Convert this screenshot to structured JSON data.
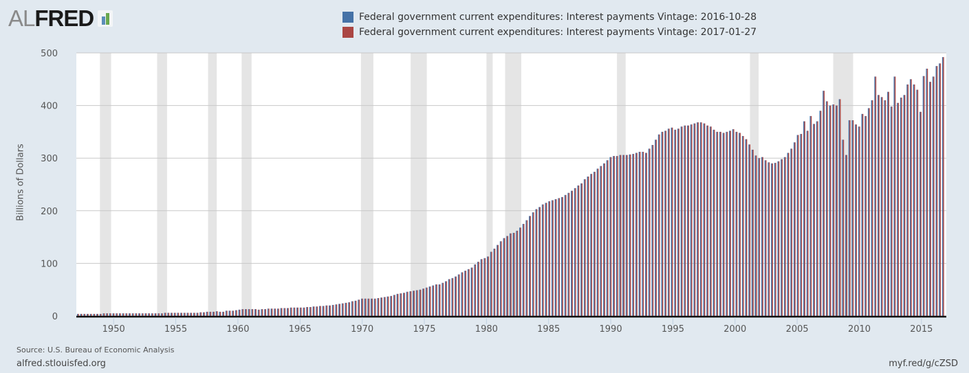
{
  "logo": {
    "prefix": "AL",
    "main": "FRED",
    "icon": "fred-bar-chart-icon"
  },
  "legend": [
    {
      "label": "Federal government current expenditures: Interest payments Vintage: 2016-10-28",
      "color": "#4572a7"
    },
    {
      "label": "Federal government current expenditures: Interest payments Vintage: 2017-01-27",
      "color": "#aa4643"
    }
  ],
  "footer": {
    "source": "Source: U.S. Bureau of Economic Analysis",
    "site": "alfred.stlouisfed.org",
    "shortlink": "myf.red/g/cZSD"
  },
  "chart_data": {
    "type": "bar",
    "title": "",
    "xlabel": "",
    "ylabel": "Billions of Dollars",
    "ylim": [
      0,
      500
    ],
    "yticks": [
      0,
      100,
      200,
      300,
      400,
      500
    ],
    "xticks": [
      1950,
      1955,
      1960,
      1965,
      1970,
      1975,
      1980,
      1985,
      1990,
      1995,
      2000,
      2005,
      2010,
      2015
    ],
    "xlim": [
      1947.0,
      2017.0
    ],
    "frequency": "quarterly",
    "start": "1947-Q1",
    "grid": true,
    "legend_position": "top",
    "recessions": [
      [
        1948.9,
        1949.8
      ],
      [
        1953.5,
        1954.3
      ],
      [
        1957.6,
        1958.3
      ],
      [
        1960.3,
        1961.1
      ],
      [
        1969.9,
        1970.9
      ],
      [
        1973.9,
        1975.2
      ],
      [
        1980.0,
        1980.5
      ],
      [
        1981.5,
        1982.8
      ],
      [
        1990.5,
        1991.2
      ],
      [
        2001.2,
        2001.9
      ],
      [
        2007.9,
        2009.5
      ]
    ],
    "annual_levels": {
      "years": [
        1947,
        1948,
        1949,
        1950,
        1951,
        1952,
        1953,
        1954,
        1955,
        1956,
        1957,
        1958,
        1959,
        1960,
        1961,
        1962,
        1963,
        1964,
        1965,
        1966,
        1967,
        1968,
        1969,
        1970,
        1971,
        1972,
        1973,
        1974,
        1975,
        1976,
        1977,
        1978,
        1979,
        1980,
        1981,
        1982,
        1983,
        1984,
        1985,
        1986,
        1987,
        1988,
        1989,
        1990,
        1991,
        1992,
        1993,
        1994,
        1995,
        1996,
        1997,
        1998,
        1999,
        2000,
        2001,
        2002,
        2003,
        2004,
        2005,
        2006,
        2007,
        2008,
        2009,
        2010,
        2011,
        2012,
        2013,
        2014,
        2015,
        2016
      ],
      "values": [
        4,
        4,
        5,
        5,
        5,
        5,
        6,
        6,
        6,
        7,
        8,
        8,
        10,
        12,
        12,
        13,
        14,
        15,
        16,
        17,
        19,
        21,
        24,
        29,
        32,
        33,
        38,
        44,
        50,
        55,
        60,
        70,
        82,
        100,
        125,
        145,
        160,
        180,
        205,
        218,
        225,
        240,
        262,
        282,
        300,
        305,
        308,
        312,
        340,
        355,
        360,
        366,
        355,
        352,
        345,
        310,
        295,
        292,
        310,
        345,
        380,
        405,
        360,
        375,
        420,
        420,
        420,
        440,
        440,
        470
      ]
    },
    "series": [
      {
        "name": "Vintage: 2016-10-28",
        "color": "#4572a7",
        "values": [
          4,
          4,
          4,
          4,
          4,
          4,
          4,
          4,
          5,
          5,
          5,
          5,
          5,
          5,
          5,
          5,
          5,
          5,
          5,
          5,
          5,
          5,
          5,
          5,
          5,
          5,
          5,
          6,
          6,
          6,
          6,
          6,
          6,
          6,
          6,
          6,
          6,
          6,
          7,
          7,
          8,
          8,
          8,
          9,
          8,
          8,
          10,
          10,
          10,
          11,
          12,
          13,
          13,
          13,
          13,
          13,
          12,
          13,
          13,
          14,
          14,
          14,
          14,
          15,
          15,
          15,
          16,
          16,
          16,
          16,
          16,
          17,
          17,
          18,
          18,
          19,
          19,
          20,
          20,
          21,
          22,
          23,
          24,
          25,
          26,
          28,
          29,
          31,
          33,
          33,
          33,
          33,
          33,
          34,
          35,
          36,
          37,
          38,
          40,
          42,
          43,
          44,
          46,
          47,
          48,
          49,
          50,
          52,
          54,
          56,
          58,
          60,
          60,
          63,
          66,
          70,
          72,
          75,
          79,
          83,
          86,
          89,
          92,
          98,
          103,
          108,
          110,
          113,
          122,
          128,
          135,
          142,
          148,
          152,
          157,
          158,
          162,
          168,
          175,
          182,
          190,
          197,
          203,
          207,
          212,
          215,
          218,
          220,
          222,
          224,
          226,
          230,
          234,
          238,
          243,
          248,
          252,
          260,
          265,
          270,
          274,
          280,
          285,
          290,
          296,
          302,
          304,
          304,
          306,
          306,
          306,
          307,
          308,
          310,
          312,
          312,
          310,
          318,
          325,
          335,
          345,
          350,
          352,
          356,
          358,
          354,
          356,
          360,
          362,
          362,
          364,
          366,
          368,
          368,
          366,
          362,
          360,
          354,
          350,
          350,
          348,
          350,
          352,
          355,
          350,
          348,
          342,
          336,
          326,
          316,
          305,
          300,
          302,
          296,
          292,
          290,
          291,
          294,
          298,
          302,
          310,
          318,
          330,
          344,
          346,
          370,
          352,
          380,
          365,
          370,
          390,
          428,
          408,
          400,
          402,
          400,
          412,
          335,
          306,
          372,
          372,
          364,
          360,
          384,
          380,
          395,
          410,
          455,
          420,
          416,
          410,
          426,
          398,
          455,
          405,
          415,
          420,
          440,
          450,
          440,
          430,
          388,
          456,
          470,
          445,
          455,
          475,
          480,
          492
        ]
      },
      {
        "name": "Vintage: 2017-01-27",
        "color": "#aa4643",
        "values": [
          4,
          4,
          4,
          4,
          4,
          4,
          4,
          4,
          5,
          5,
          5,
          5,
          5,
          5,
          5,
          5,
          5,
          5,
          5,
          5,
          5,
          5,
          5,
          5,
          5,
          5,
          5,
          6,
          6,
          6,
          6,
          6,
          6,
          6,
          6,
          6,
          6,
          6,
          7,
          7,
          8,
          8,
          8,
          9,
          8,
          8,
          10,
          10,
          10,
          11,
          12,
          13,
          13,
          13,
          13,
          13,
          12,
          13,
          13,
          14,
          14,
          14,
          14,
          15,
          15,
          15,
          16,
          16,
          16,
          16,
          16,
          17,
          17,
          18,
          18,
          19,
          19,
          20,
          20,
          21,
          22,
          23,
          24,
          25,
          26,
          28,
          29,
          31,
          33,
          33,
          33,
          33,
          33,
          34,
          35,
          36,
          37,
          38,
          40,
          42,
          43,
          44,
          46,
          47,
          48,
          49,
          50,
          52,
          54,
          56,
          58,
          60,
          60,
          63,
          66,
          70,
          72,
          75,
          79,
          83,
          86,
          89,
          92,
          98,
          103,
          108,
          110,
          113,
          122,
          128,
          135,
          142,
          148,
          152,
          157,
          158,
          162,
          168,
          175,
          182,
          190,
          197,
          203,
          207,
          212,
          215,
          218,
          220,
          222,
          224,
          226,
          230,
          234,
          238,
          243,
          248,
          252,
          260,
          265,
          270,
          274,
          280,
          285,
          290,
          296,
          302,
          304,
          304,
          306,
          306,
          306,
          307,
          308,
          310,
          312,
          312,
          310,
          318,
          325,
          335,
          345,
          350,
          352,
          356,
          358,
          354,
          356,
          360,
          362,
          362,
          364,
          366,
          368,
          368,
          366,
          362,
          360,
          354,
          350,
          350,
          348,
          350,
          352,
          355,
          350,
          348,
          342,
          336,
          326,
          316,
          305,
          300,
          302,
          296,
          292,
          290,
          291,
          294,
          298,
          302,
          310,
          318,
          330,
          344,
          346,
          370,
          352,
          380,
          365,
          370,
          390,
          428,
          408,
          400,
          402,
          400,
          412,
          335,
          306,
          372,
          372,
          364,
          360,
          384,
          380,
          395,
          410,
          455,
          420,
          416,
          410,
          426,
          398,
          455,
          405,
          415,
          420,
          440,
          450,
          440,
          430,
          388,
          456,
          470,
          445,
          455,
          475,
          480,
          492
        ]
      }
    ]
  }
}
